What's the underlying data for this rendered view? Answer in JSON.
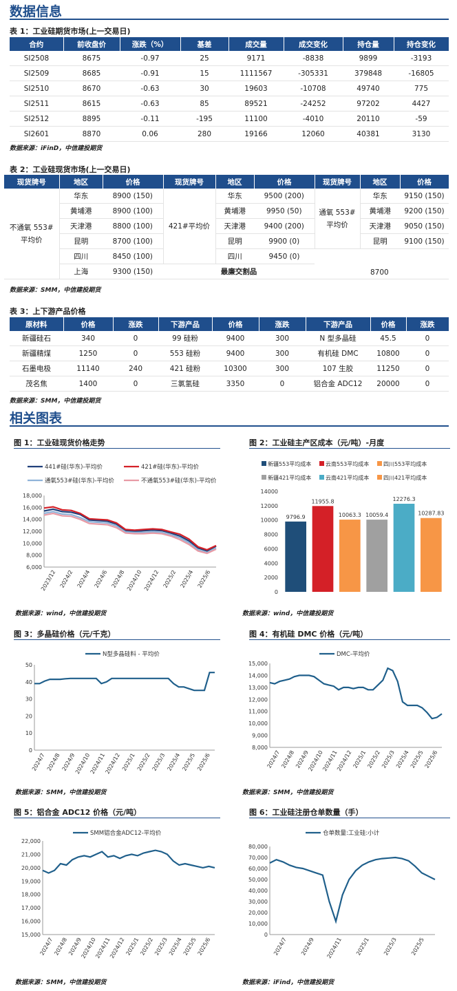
{
  "sections": {
    "data_info": "数据信息",
    "charts": "相关图表"
  },
  "table1": {
    "title": "表 1：工业硅期货市场(上一交易日)",
    "headers": [
      "合约",
      "前收盘价",
      "涨跌（%）",
      "基差",
      "成交量",
      "成交变化",
      "持仓量",
      "持仓变化"
    ],
    "rows": [
      [
        "SI2508",
        "8675",
        "-0.97",
        "25",
        "9171",
        "-8838",
        "9899",
        "-3193"
      ],
      [
        "SI2509",
        "8685",
        "-0.91",
        "15",
        "1111567",
        "-305331",
        "379848",
        "-16805"
      ],
      [
        "SI2510",
        "8670",
        "-0.63",
        "30",
        "19603",
        "-10708",
        "49740",
        "775"
      ],
      [
        "SI2511",
        "8615",
        "-0.63",
        "85",
        "89521",
        "-24252",
        "97202",
        "4427"
      ],
      [
        "SI2512",
        "8895",
        "-0.11",
        "-195",
        "11100",
        "-4010",
        "20110",
        "-59"
      ],
      [
        "SI2601",
        "8870",
        "0.06",
        "280",
        "19166",
        "12060",
        "40381",
        "3130"
      ]
    ],
    "source": "数据来源：iFinD，中信建投期货"
  },
  "table2": {
    "title": "表 2：工业硅现货市场(上一交易日)",
    "headers": [
      "现货牌号",
      "地区",
      "价格",
      "现货牌号",
      "地区",
      "价格",
      "现货牌号",
      "地区",
      "价格"
    ],
    "grade1": "不通氧 553#\n平均价",
    "grade2": "421#平均价",
    "grade3": "通氧 553#\n平均价",
    "col1": [
      [
        "华东",
        "8900 (150)"
      ],
      [
        "黄埔港",
        "8900 (100)"
      ],
      [
        "天津港",
        "8800 (100)"
      ],
      [
        "昆明",
        "8700 (100)"
      ],
      [
        "四川",
        "8450 (100)"
      ],
      [
        "上海",
        "9300 (150)"
      ]
    ],
    "col2": [
      [
        "华东",
        "9500 (200)"
      ],
      [
        "黄埔港",
        "9950 (50)"
      ],
      [
        "天津港",
        "9400 (200)"
      ],
      [
        "昆明",
        "9900 (0)"
      ],
      [
        "四川",
        "9450 (0)"
      ]
    ],
    "col3": [
      [
        "华东",
        "9150 (150)"
      ],
      [
        "黄埔港",
        "9200 (150)"
      ],
      [
        "天津港",
        "9050 (150)"
      ],
      [
        "昆明",
        "9100 (150)"
      ]
    ],
    "cheapest_label": "最廉交割品",
    "cheapest_value": "8700",
    "source": "数据来源：SMM，中信建投期货"
  },
  "table3": {
    "title": "表 3：上下游产品价格",
    "headers": [
      "原材料",
      "价格",
      "涨跌",
      "下游产品",
      "价格",
      "涨跌",
      "下游产品",
      "价格",
      "涨跌"
    ],
    "rows": [
      [
        "新疆硅石",
        "340",
        "0",
        "99 硅粉",
        "9400",
        "300",
        "N 型多晶硅",
        "45.5",
        "0"
      ],
      [
        "新疆精煤",
        "1250",
        "0",
        "553 硅粉",
        "9400",
        "300",
        "有机硅 DMC",
        "10800",
        "0"
      ],
      [
        "石墨电极",
        "11140",
        "240",
        "421 硅粉",
        "10300",
        "300",
        "107 生胶",
        "11250",
        "0"
      ],
      [
        "茂名焦",
        "1400",
        "0",
        "三氯氢硅",
        "3350",
        "0",
        "铝合金 ADC12",
        "20000",
        "0"
      ]
    ],
    "source": "数据来源：SMM，中信建投期货"
  },
  "figures": {
    "fig1_title": "图 1：工业硅现货价格走势",
    "fig2_title": "图 2：工业硅主产区成本（元/吨）-月度",
    "fig3_title": "图 3：多晶硅价格（元/千克）",
    "fig4_title": "图 4：有机硅 DMC 价格（元/吨）",
    "fig5_title": "图 5：铝合金 ADC12 价格（元/吨）",
    "fig6_title": "图 6：工业硅注册仓单数量（手）",
    "src1": "数据来源：wind，中信建投期货",
    "src2": "数据来源：wind，中信建投期货",
    "src3": "数据来源：SMM，中信建投期货",
    "src4": "数据来源：SMM，中信建投期货",
    "src5": "数据来源：SMM，中信建投期货",
    "src6": "数据来源：iFind，中信建投期货"
  },
  "chart_data": [
    {
      "type": "line",
      "title": "",
      "ylim": [
        6000,
        18000
      ],
      "yticks": [
        "6,000",
        "8,000",
        "10,000",
        "12,000",
        "14,000",
        "16,000",
        "18,000"
      ],
      "xticks": [
        "2023/12",
        "2024/2",
        "2024/4",
        "2024/6",
        "2024/8",
        "2024/10",
        "2024/12",
        "2025/2",
        "2025/4",
        "2025/6"
      ],
      "legend": [
        "441#硅(华东)-平均价",
        "421#硅(华东)-平均价",
        "通氧553#硅(华东)-平均价",
        "不通氧553#硅(华东)-平均价"
      ],
      "colors": [
        "#1f3f7a",
        "#d42027",
        "#8fb3d9",
        "#e89aa5"
      ],
      "series": [
        {
          "name": "441#硅(华东)-平均价",
          "values": [
            15400,
            15700,
            15300,
            15200,
            14800,
            13900,
            13800,
            13700,
            13200,
            12100,
            12000,
            12100,
            12200,
            12100,
            11700,
            11200,
            10400,
            9200,
            8700,
            9500
          ]
        },
        {
          "name": "421#硅(华东)-平均价",
          "values": [
            15900,
            16100,
            15600,
            15500,
            15000,
            14100,
            14000,
            13900,
            13400,
            12300,
            12200,
            12300,
            12400,
            12300,
            11900,
            11500,
            10700,
            9400,
            8900,
            9600
          ]
        },
        {
          "name": "通氧553#硅(华东)-平均价",
          "values": [
            15000,
            15300,
            14900,
            14800,
            14300,
            13600,
            13500,
            13400,
            12900,
            11900,
            11800,
            11800,
            11900,
            11800,
            11400,
            10900,
            10100,
            8900,
            8400,
            9200
          ]
        },
        {
          "name": "不通氧553#硅(华东)-平均价",
          "values": [
            14700,
            15000,
            14600,
            14500,
            14000,
            13300,
            13200,
            13100,
            12600,
            11700,
            11600,
            11600,
            11700,
            11600,
            11200,
            10600,
            9800,
            8700,
            8300,
            9000
          ]
        }
      ]
    },
    {
      "type": "bar",
      "title": "",
      "ylim": [
        0,
        14000
      ],
      "yticks": [
        "0",
        "2000",
        "4000",
        "6000",
        "8000",
        "10000",
        "12000",
        "14000"
      ],
      "categories": [
        "新疆553平均成本",
        "云南553平均成本",
        "四川553平均成本",
        "新疆421平均成本",
        "云南421平均成本",
        "四川421平均成本"
      ],
      "values": [
        9796.9,
        11955.8,
        10063.3,
        10059.4,
        12276.3,
        10287.83
      ],
      "colors": [
        "#1f4e79",
        "#d42027",
        "#f79646",
        "#a0a0a0",
        "#4bacc6",
        "#f79646"
      ]
    },
    {
      "type": "line",
      "title": "",
      "ylim": [
        0,
        50
      ],
      "yticks": [
        "0",
        "10",
        "20",
        "30",
        "40",
        "50"
      ],
      "xticks": [
        "2024/7",
        "2024/8",
        "2024/9",
        "2024/10",
        "2024/11",
        "2024/12",
        "2025/1",
        "2025/2",
        "2025/3",
        "2025/4",
        "2025/5",
        "2025/6"
      ],
      "legend": [
        "N型多晶硅料 - 平均价"
      ],
      "series": [
        {
          "name": "N型多晶硅料 - 平均价",
          "values": [
            39,
            39,
            40.5,
            41.5,
            41.5,
            41.5,
            41.8,
            42,
            42,
            42,
            42,
            42,
            42,
            39,
            40,
            42,
            42,
            42,
            42,
            42,
            42,
            42,
            42,
            42,
            42,
            42,
            42,
            39,
            37,
            37,
            36,
            35,
            35,
            35,
            45.5,
            45.5
          ]
        }
      ]
    },
    {
      "type": "line",
      "title": "",
      "ylim": [
        8000,
        15000
      ],
      "yticks": [
        "8,000",
        "9,000",
        "10,000",
        "11,000",
        "12,000",
        "13,000",
        "14,000",
        "15,000"
      ],
      "xticks": [
        "2024/7",
        "2024/8",
        "2024/9",
        "2024/10",
        "2024/11",
        "2024/12",
        "2025/1",
        "2025/2",
        "2025/3",
        "2025/4",
        "2025/5",
        "2025/6"
      ],
      "legend": [
        "DMC-平均价"
      ],
      "series": [
        {
          "name": "DMC-平均价",
          "values": [
            13400,
            13300,
            13500,
            13600,
            13700,
            13900,
            14000,
            14000,
            14000,
            13900,
            13600,
            13300,
            13200,
            13100,
            12800,
            13000,
            13000,
            12900,
            13000,
            13000,
            12800,
            12800,
            13200,
            13600,
            14600,
            14400,
            13500,
            11800,
            11500,
            11500,
            11500,
            11300,
            10900,
            10400,
            10500,
            10800
          ]
        }
      ]
    },
    {
      "type": "line",
      "title": "",
      "ylim": [
        15000,
        22000
      ],
      "yticks": [
        "15,000",
        "16,000",
        "17,000",
        "18,000",
        "19,000",
        "20,000",
        "21,000",
        "22,000"
      ],
      "xticks": [
        "2024/7",
        "2024/8",
        "2024/9",
        "2024/10",
        "2024/11",
        "2024/12",
        "2025/1",
        "2025/2",
        "2025/3",
        "2025/4",
        "2025/5",
        "2025/6"
      ],
      "legend": [
        "SMM铝合金ADC12-平均价"
      ],
      "series": [
        {
          "name": "SMM铝合金ADC12-平均价",
          "values": [
            19800,
            19600,
            19800,
            20300,
            20200,
            20600,
            20800,
            20900,
            20800,
            21000,
            21200,
            20800,
            20900,
            20700,
            20900,
            21000,
            20900,
            21100,
            21200,
            21300,
            21200,
            21000,
            20500,
            20200,
            20300,
            20200,
            20100,
            20000,
            20100,
            20000
          ]
        }
      ]
    },
    {
      "type": "line",
      "title": "",
      "ylim": [
        0,
        80000
      ],
      "yticks": [
        "0",
        "10,000",
        "20,000",
        "30,000",
        "40,000",
        "50,000",
        "60,000",
        "70,000",
        "80,000"
      ],
      "xticks": [
        "2024/7",
        "2024/9",
        "2024/11",
        "2025/1",
        "2025/3",
        "2025/5"
      ],
      "legend": [
        "仓单数量:工业硅:小计"
      ],
      "series": [
        {
          "name": "仓单数量:工业硅:小计",
          "values": [
            65000,
            68000,
            66000,
            63000,
            61000,
            60000,
            58000,
            56000,
            54000,
            30000,
            12000,
            36000,
            50000,
            58000,
            63000,
            66000,
            68000,
            69000,
            69500,
            70000,
            69000,
            67000,
            62000,
            56000,
            53000,
            50000
          ]
        }
      ]
    }
  ]
}
